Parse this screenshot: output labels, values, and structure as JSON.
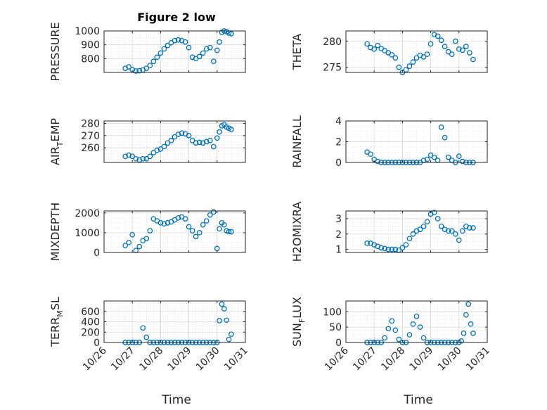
{
  "figure": {
    "title": "Figure 2 low",
    "xlabel_left": "Time",
    "xlabel_right": "Time",
    "marker_color": "#0072BD",
    "grid_color": "#d9d9d9"
  },
  "chart_data": [
    {
      "id": "pressure",
      "type": "scatter",
      "ylabel": "PRESSURE",
      "ylim": [
        700,
        1000
      ],
      "yticks": [
        800,
        900,
        1000
      ],
      "xlim": [
        "10/26",
        "10/31"
      ],
      "xticks": [
        "10/26",
        "10/27",
        "10/28",
        "10/29",
        "10/30",
        "10/31"
      ],
      "x": [
        "10/26 18:00",
        "10/26 21:00",
        "10/27 00:00",
        "10/27 03:00",
        "10/27 06:00",
        "10/27 09:00",
        "10/27 12:00",
        "10/27 15:00",
        "10/27 18:00",
        "10/27 21:00",
        "10/28 00:00",
        "10/28 03:00",
        "10/28 06:00",
        "10/28 09:00",
        "10/28 12:00",
        "10/28 15:00",
        "10/28 18:00",
        "10/28 21:00",
        "10/29 00:00",
        "10/29 03:00",
        "10/29 06:00",
        "10/29 09:00",
        "10/29 12:00",
        "10/29 15:00",
        "10/29 18:00",
        "10/29 21:00",
        "10/30 00:00",
        "10/30 02:00",
        "10/30 04:00",
        "10/30 06:00",
        "10/30 08:00",
        "10/30 10:00",
        "10/30 12:00"
      ],
      "y": [
        730,
        740,
        720,
        710,
        712,
        718,
        730,
        750,
        780,
        810,
        840,
        870,
        895,
        915,
        930,
        935,
        930,
        920,
        880,
        810,
        800,
        815,
        840,
        870,
        880,
        780,
        860,
        920,
        990,
        1000,
        995,
        985,
        980
      ]
    },
    {
      "id": "theta",
      "type": "scatter",
      "ylabel": "THETA",
      "ylim": [
        274,
        282
      ],
      "yticks": [
        275,
        280
      ],
      "xlim": [
        "10/26",
        "10/31"
      ],
      "xticks": [
        "10/26",
        "10/27",
        "10/28",
        "10/29",
        "10/30",
        "10/31"
      ],
      "x": [
        "10/26 18:00",
        "10/26 21:00",
        "10/27 00:00",
        "10/27 03:00",
        "10/27 06:00",
        "10/27 09:00",
        "10/27 12:00",
        "10/27 15:00",
        "10/27 18:00",
        "10/27 21:00",
        "10/28 00:00",
        "10/28 03:00",
        "10/28 06:00",
        "10/28 09:00",
        "10/28 12:00",
        "10/28 15:00",
        "10/28 18:00",
        "10/28 21:00",
        "10/29 00:00",
        "10/29 03:00",
        "10/29 06:00",
        "10/29 09:00",
        "10/29 12:00",
        "10/29 15:00",
        "10/29 18:00",
        "10/29 21:00",
        "10/30 00:00",
        "10/30 03:00",
        "10/30 06:00",
        "10/30 09:00",
        "10/30 12:00"
      ],
      "y": [
        279.5,
        278.8,
        278.5,
        279.2,
        278.6,
        278.2,
        277.8,
        277.4,
        276.8,
        275.0,
        274.0,
        274.5,
        275.2,
        276.0,
        276.8,
        277.3,
        277.0,
        277.5,
        279.5,
        281.3,
        281.0,
        280.2,
        279.0,
        278.0,
        277.5,
        280.0,
        278.5,
        278.3,
        279.0,
        277.8,
        276.5
      ]
    },
    {
      "id": "air_temp",
      "type": "scatter",
      "ylabel": "AIR_TEMP",
      "ylim": [
        248,
        282
      ],
      "yticks": [
        260,
        270,
        280
      ],
      "xlim": [
        "10/26",
        "10/31"
      ],
      "xticks": [
        "10/26",
        "10/27",
        "10/28",
        "10/29",
        "10/30",
        "10/31"
      ],
      "x": [
        "10/26 18:00",
        "10/26 21:00",
        "10/27 00:00",
        "10/27 03:00",
        "10/27 06:00",
        "10/27 09:00",
        "10/27 12:00",
        "10/27 15:00",
        "10/27 18:00",
        "10/27 21:00",
        "10/28 00:00",
        "10/28 03:00",
        "10/28 06:00",
        "10/28 09:00",
        "10/28 12:00",
        "10/28 15:00",
        "10/28 18:00",
        "10/28 21:00",
        "10/29 00:00",
        "10/29 03:00",
        "10/29 06:00",
        "10/29 09:00",
        "10/29 12:00",
        "10/29 15:00",
        "10/29 18:00",
        "10/29 21:00",
        "10/30 00:00",
        "10/30 02:00",
        "10/30 04:00",
        "10/30 06:00",
        "10/30 08:00",
        "10/30 10:00",
        "10/30 12:00"
      ],
      "y": [
        253,
        254,
        253,
        251,
        250,
        251,
        251,
        253,
        256,
        258,
        259,
        261,
        264,
        266,
        269,
        271,
        272,
        271.5,
        270,
        266,
        264,
        264.5,
        264,
        265,
        266,
        261,
        268,
        273,
        278,
        279,
        277,
        276,
        275
      ]
    },
    {
      "id": "rainfall",
      "type": "scatter",
      "ylabel": "RAINFALL",
      "ylim": [
        0,
        4
      ],
      "yticks": [
        0,
        2,
        4
      ],
      "xlim": [
        "10/26",
        "10/31"
      ],
      "xticks": [
        "10/26",
        "10/27",
        "10/28",
        "10/29",
        "10/30",
        "10/31"
      ],
      "x": [
        "10/26 18:00",
        "10/26 21:00",
        "10/27 00:00",
        "10/27 03:00",
        "10/27 06:00",
        "10/27 09:00",
        "10/27 12:00",
        "10/27 15:00",
        "10/27 18:00",
        "10/27 21:00",
        "10/28 00:00",
        "10/28 03:00",
        "10/28 06:00",
        "10/28 09:00",
        "10/28 12:00",
        "10/28 15:00",
        "10/28 18:00",
        "10/28 21:00",
        "10/29 00:00",
        "10/29 03:00",
        "10/29 06:00",
        "10/29 09:00",
        "10/29 12:00",
        "10/29 15:00",
        "10/29 18:00",
        "10/29 21:00",
        "10/30 00:00",
        "10/30 03:00",
        "10/30 06:00",
        "10/30 09:00",
        "10/30 12:00"
      ],
      "y": [
        1.0,
        0.8,
        0.3,
        0.1,
        0,
        0,
        0,
        0,
        0,
        0,
        0,
        0,
        0,
        0,
        0,
        0,
        0.2,
        0.3,
        0.7,
        0.5,
        0.2,
        3.4,
        2.4,
        0.5,
        0.2,
        0,
        0.6,
        0.1,
        0,
        0,
        0
      ]
    },
    {
      "id": "mixdepth",
      "type": "scatter",
      "ylabel": "MIXDEPTH",
      "ylim": [
        0,
        2100
      ],
      "yticks": [
        0,
        1000,
        2000
      ],
      "xlim": [
        "10/26",
        "10/31"
      ],
      "xticks": [
        "10/26",
        "10/27",
        "10/28",
        "10/29",
        "10/30",
        "10/31"
      ],
      "x": [
        "10/26 18:00",
        "10/26 21:00",
        "10/27 00:00",
        "10/27 03:00",
        "10/27 06:00",
        "10/27 09:00",
        "10/27 12:00",
        "10/27 15:00",
        "10/27 18:00",
        "10/27 21:00",
        "10/28 00:00",
        "10/28 03:00",
        "10/28 06:00",
        "10/28 09:00",
        "10/28 12:00",
        "10/28 15:00",
        "10/28 18:00",
        "10/28 21:00",
        "10/29 00:00",
        "10/29 03:00",
        "10/29 06:00",
        "10/29 09:00",
        "10/29 12:00",
        "10/29 15:00",
        "10/29 18:00",
        "10/29 21:00",
        "10/30 00:00",
        "10/30 02:00",
        "10/30 04:00",
        "10/30 06:00",
        "10/30 08:00",
        "10/30 10:00",
        "10/30 12:00"
      ],
      "y": [
        350,
        500,
        900,
        100,
        300,
        600,
        700,
        1100,
        1700,
        1600,
        1500,
        1450,
        1500,
        1550,
        1650,
        1750,
        1800,
        1700,
        1300,
        1100,
        800,
        1000,
        1400,
        1600,
        1900,
        2050,
        200,
        1200,
        1500,
        1400,
        1100,
        1050,
        1050
      ]
    },
    {
      "id": "h2omixra",
      "type": "scatter",
      "ylabel": "H2OMIXRA",
      "ylim": [
        0.8,
        3.5
      ],
      "yticks": [
        1,
        2,
        3
      ],
      "xlim": [
        "10/26",
        "10/31"
      ],
      "xticks": [
        "10/26",
        "10/27",
        "10/28",
        "10/29",
        "10/30",
        "10/31"
      ],
      "x": [
        "10/26 18:00",
        "10/26 21:00",
        "10/27 00:00",
        "10/27 03:00",
        "10/27 06:00",
        "10/27 09:00",
        "10/27 12:00",
        "10/27 15:00",
        "10/27 18:00",
        "10/27 21:00",
        "10/28 00:00",
        "10/28 03:00",
        "10/28 06:00",
        "10/28 09:00",
        "10/28 12:00",
        "10/28 15:00",
        "10/28 18:00",
        "10/28 21:00",
        "10/29 00:00",
        "10/29 03:00",
        "10/29 06:00",
        "10/29 09:00",
        "10/29 12:00",
        "10/29 15:00",
        "10/29 18:00",
        "10/29 21:00",
        "10/30 00:00",
        "10/30 03:00",
        "10/30 06:00",
        "10/30 09:00",
        "10/30 12:00"
      ],
      "y": [
        1.4,
        1.4,
        1.3,
        1.2,
        1.1,
        1.05,
        1.0,
        1.0,
        1.0,
        0.95,
        1.1,
        1.3,
        1.7,
        2.0,
        2.2,
        2.3,
        2.5,
        2.8,
        3.3,
        3.4,
        3.0,
        2.5,
        2.3,
        2.2,
        2.2,
        2.0,
        1.6,
        2.2,
        2.5,
        2.4,
        2.4
      ]
    },
    {
      "id": "terr_msl",
      "type": "scatter",
      "ylabel": "TERR_MSL",
      "ylim": [
        0,
        800
      ],
      "yticks": [
        0,
        200,
        400,
        600
      ],
      "xlim": [
        "10/26",
        "10/31"
      ],
      "xticks": [
        "10/26",
        "10/27",
        "10/28",
        "10/29",
        "10/30",
        "10/31"
      ],
      "x": [
        "10/26 18:00",
        "10/26 21:00",
        "10/27 00:00",
        "10/27 03:00",
        "10/27 06:00",
        "10/27 09:00",
        "10/27 12:00",
        "10/27 15:00",
        "10/27 18:00",
        "10/27 21:00",
        "10/28 00:00",
        "10/28 03:00",
        "10/28 06:00",
        "10/28 09:00",
        "10/28 12:00",
        "10/28 15:00",
        "10/28 18:00",
        "10/28 21:00",
        "10/29 00:00",
        "10/29 03:00",
        "10/29 06:00",
        "10/29 09:00",
        "10/29 12:00",
        "10/29 15:00",
        "10/29 18:00",
        "10/29 21:00",
        "10/30 00:00",
        "10/30 02:00",
        "10/30 04:00",
        "10/30 06:00",
        "10/30 08:00",
        "10/30 10:00",
        "10/30 12:00"
      ],
      "y": [
        0,
        0,
        0,
        0,
        0,
        280,
        100,
        0,
        0,
        0,
        0,
        0,
        0,
        0,
        0,
        0,
        0,
        0,
        0,
        0,
        0,
        0,
        0,
        0,
        0,
        0,
        0,
        420,
        740,
        650,
        430,
        60,
        160
      ]
    },
    {
      "id": "sun_flux",
      "type": "scatter",
      "ylabel": "SUN_FLUX",
      "ylim": [
        0,
        135
      ],
      "yticks": [
        0,
        50,
        100
      ],
      "xlim": [
        "10/26",
        "10/31"
      ],
      "xticks": [
        "10/26",
        "10/27",
        "10/28",
        "10/29",
        "10/30",
        "10/31"
      ],
      "x": [
        "10/26 18:00",
        "10/26 21:00",
        "10/27 00:00",
        "10/27 03:00",
        "10/27 06:00",
        "10/27 09:00",
        "10/27 12:00",
        "10/27 15:00",
        "10/27 18:00",
        "10/27 21:00",
        "10/28 00:00",
        "10/28 03:00",
        "10/28 06:00",
        "10/28 09:00",
        "10/28 12:00",
        "10/28 15:00",
        "10/28 18:00",
        "10/28 21:00",
        "10/29 00:00",
        "10/29 03:00",
        "10/29 06:00",
        "10/29 09:00",
        "10/29 12:00",
        "10/29 15:00",
        "10/29 18:00",
        "10/29 21:00",
        "10/30 00:00",
        "10/30 02:00",
        "10/30 04:00",
        "10/30 06:00",
        "10/30 08:00",
        "10/30 10:00",
        "10/30 12:00"
      ],
      "y": [
        0,
        0,
        0,
        0,
        0,
        15,
        45,
        70,
        40,
        10,
        0,
        0,
        25,
        60,
        85,
        50,
        15,
        0,
        0,
        0,
        0,
        0,
        0,
        0,
        0,
        0,
        0,
        5,
        30,
        90,
        125,
        60,
        30
      ]
    }
  ]
}
